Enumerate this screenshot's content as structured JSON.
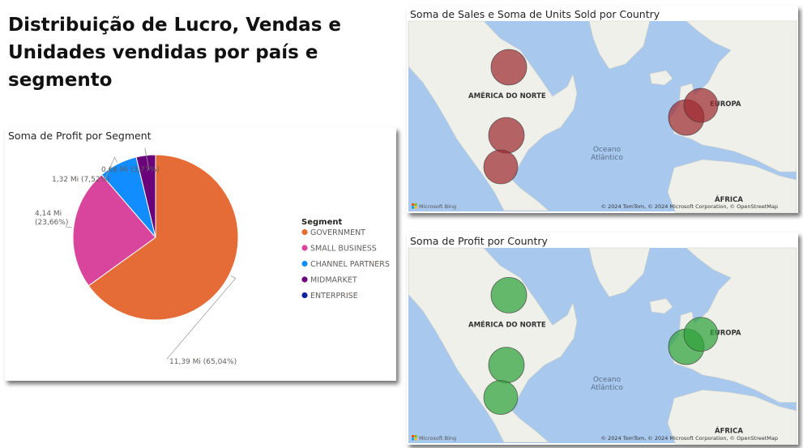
{
  "page_title": "Distribuição de Lucro, Vendas e Unidades vendidas por país e segmento",
  "colors": {
    "government": "#E66C37",
    "small_business": "#D9449D",
    "channel_partners": "#118DFF",
    "midmarket": "#6B007B",
    "enterprise": "#12239E",
    "water": "#a8c8ee",
    "land": "#eef0e9",
    "bubble_sales": "#a02b32",
    "bubble_profit": "#2fa23c"
  },
  "chart_data": [
    {
      "type": "pie",
      "title": "Soma de Profit por Segment",
      "legend_title": "Segment",
      "legend_position": "right",
      "unit": "Mi",
      "categories": [
        "GOVERNMENT",
        "SMALL BUSINESS",
        "CHANNEL PARTNERS",
        "MIDMARKET",
        "ENTERPRISE"
      ],
      "values": [
        11.39,
        4.14,
        1.32,
        0.66,
        0
      ],
      "data_labels": [
        "11,39 Mi (65,04%)",
        "4,14 Mi (23,66%)",
        "1,32 Mi (7,52%)",
        "0,66 Mi (3,77%)",
        ""
      ]
    },
    {
      "type": "map",
      "title": "Soma de Sales e Soma de Units Sold por Country",
      "region_labels": [
        "AMÉRICA DO NORTE",
        "EUROPA",
        "ÁFRICA"
      ],
      "ocean_label": [
        "Oceano",
        "Atlântico"
      ],
      "attribution": "© 2024 TomTom, © 2024 Microsoft Corporation, © OpenStreetMap",
      "logo": "Microsoft Bing",
      "locations": [
        "Canada",
        "United States of America",
        "Mexico",
        "France",
        "Germany"
      ]
    },
    {
      "type": "map",
      "title": "Soma de Profit por Country",
      "region_labels": [
        "AMÉRICA DO NORTE",
        "EUROPA",
        "ÁFRICA"
      ],
      "ocean_label": [
        "Oceano",
        "Atlântico"
      ],
      "attribution": "© 2024 TomTom, © 2024 Microsoft Corporation, © OpenStreetMap",
      "logo": "Microsoft Bing",
      "locations": [
        "Canada",
        "United States of America",
        "Mexico",
        "France",
        "Germany"
      ]
    }
  ]
}
